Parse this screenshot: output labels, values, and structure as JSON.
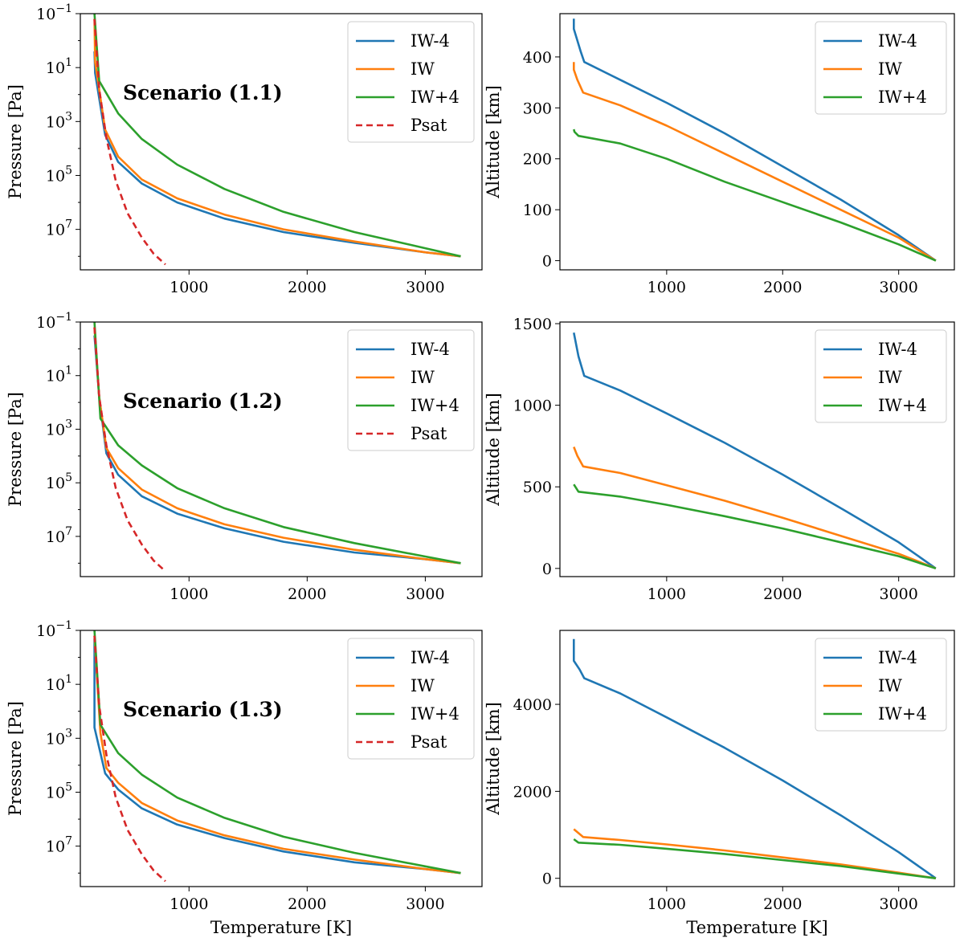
{
  "figure": {
    "colors": {
      "IW-4": "#1f77b4",
      "IW": "#ff7f0e",
      "IW+4": "#2ca02c",
      "Psat": "#d62728"
    }
  },
  "chart_data": [
    {
      "id": "p-1-1",
      "type": "line",
      "title": "",
      "annotation": "Scenario (1.1)",
      "xlabel": "",
      "ylabel": "Pressure [Pa]",
      "yscale": "log",
      "yinverted": true,
      "xlim": [
        80,
        3480
      ],
      "ylim_exp": [
        -1,
        8.5
      ],
      "xticks": [
        1000,
        2000,
        3000
      ],
      "xtick_labels": [
        "1000",
        "2000",
        "3000"
      ],
      "yticks_exp": [
        -1,
        1,
        3,
        5,
        7
      ],
      "ytick_labels": [
        "-1",
        "1",
        "3",
        "5",
        "7"
      ],
      "legend": {
        "position": "top-right",
        "entries": [
          "IW-4",
          "IW",
          "IW+4",
          "Psat"
        ]
      },
      "series": [
        {
          "name": "IW-4",
          "style": "solid",
          "x": [
            200,
            205,
            290,
            400,
            600,
            900,
            1300,
            1800,
            2400,
            3000,
            3300
          ],
          "y_exp": [
            0.4,
            1.2,
            3.5,
            4.5,
            5.3,
            6.0,
            6.6,
            7.1,
            7.5,
            7.85,
            8.0
          ]
        },
        {
          "name": "IW",
          "style": "solid",
          "x": [
            200,
            205,
            290,
            400,
            600,
            900,
            1300,
            1800,
            2400,
            3000,
            3300
          ],
          "y_exp": [
            -0.8,
            0.8,
            3.3,
            4.3,
            5.15,
            5.85,
            6.45,
            7.0,
            7.45,
            7.85,
            8.0
          ]
        },
        {
          "name": "IW+4",
          "style": "solid",
          "x": [
            200,
            240,
            400,
            600,
            900,
            1300,
            1800,
            2400,
            3000,
            3300
          ],
          "y_exp": [
            -1.0,
            1.5,
            2.7,
            3.65,
            4.6,
            5.5,
            6.35,
            7.1,
            7.7,
            8.0
          ]
        },
        {
          "name": "Psat",
          "style": "dashed",
          "x": [
            200,
            240,
            300,
            380,
            480,
            600,
            700,
            800
          ],
          "y_exp": [
            -0.8,
            1.8,
            3.6,
            5.2,
            6.4,
            7.3,
            7.9,
            8.3
          ]
        }
      ]
    },
    {
      "id": "a-1-1",
      "type": "line",
      "title": "",
      "xlabel": "",
      "ylabel": "Altitude [km]",
      "xlim": [
        80,
        3480
      ],
      "ylim": [
        -18,
        485
      ],
      "xticks": [
        1000,
        2000,
        3000
      ],
      "xtick_labels": [
        "1000",
        "2000",
        "3000"
      ],
      "yticks": [
        0,
        100,
        200,
        300,
        400
      ],
      "ytick_labels": [
        "0",
        "100",
        "200",
        "300",
        "400"
      ],
      "legend": {
        "position": "top-right",
        "entries": [
          "IW-4",
          "IW",
          "IW+4"
        ]
      },
      "series": [
        {
          "name": "IW-4",
          "style": "solid",
          "x": [
            200,
            200,
            220,
            260,
            290,
            600,
            1000,
            1500,
            2000,
            2500,
            3000,
            3320
          ],
          "y": [
            475,
            455,
            440,
            410,
            390,
            355,
            310,
            250,
            185,
            120,
            50,
            0
          ]
        },
        {
          "name": "IW",
          "style": "solid",
          "x": [
            200,
            200,
            230,
            280,
            600,
            1000,
            1500,
            2000,
            2500,
            3000,
            3320
          ],
          "y": [
            390,
            375,
            355,
            330,
            305,
            265,
            210,
            155,
            100,
            45,
            0
          ]
        },
        {
          "name": "IW+4",
          "style": "solid",
          "x": [
            200,
            205,
            240,
            600,
            1000,
            1500,
            2000,
            2500,
            3000,
            3320
          ],
          "y": [
            258,
            253,
            245,
            230,
            200,
            155,
            115,
            75,
            32,
            0
          ]
        }
      ]
    },
    {
      "id": "p-1-2",
      "type": "line",
      "title": "",
      "annotation": "Scenario (1.2)",
      "xlabel": "",
      "ylabel": "Pressure [Pa]",
      "yscale": "log",
      "yinverted": true,
      "xlim": [
        80,
        3480
      ],
      "ylim_exp": [
        -1,
        8.5
      ],
      "xticks": [
        1000,
        2000,
        3000
      ],
      "xtick_labels": [
        "1000",
        "2000",
        "3000"
      ],
      "yticks_exp": [
        -1,
        1,
        3,
        5,
        7
      ],
      "ytick_labels": [
        "-1",
        "1",
        "3",
        "5",
        "7"
      ],
      "legend": {
        "position": "top-right",
        "entries": [
          "IW-4",
          "IW",
          "IW+4",
          "Psat"
        ]
      },
      "series": [
        {
          "name": "IW-4",
          "style": "solid",
          "x": [
            200,
            240,
            300,
            400,
            600,
            900,
            1300,
            1800,
            2400,
            3000,
            3300
          ],
          "y_exp": [
            -0.5,
            1.8,
            3.9,
            4.7,
            5.5,
            6.15,
            6.7,
            7.2,
            7.6,
            7.85,
            8.0
          ]
        },
        {
          "name": "IW",
          "style": "solid",
          "x": [
            200,
            240,
            300,
            400,
            600,
            900,
            1300,
            1800,
            2400,
            3000,
            3300
          ],
          "y_exp": [
            -0.8,
            1.8,
            3.7,
            4.45,
            5.25,
            5.95,
            6.55,
            7.05,
            7.5,
            7.85,
            8.0
          ]
        },
        {
          "name": "IW+4",
          "style": "solid",
          "x": [
            200,
            250,
            400,
            600,
            900,
            1300,
            1800,
            2400,
            3000,
            3300
          ],
          "y_exp": [
            -1.0,
            2.6,
            3.6,
            4.35,
            5.2,
            5.95,
            6.65,
            7.25,
            7.75,
            8.0
          ]
        },
        {
          "name": "Psat",
          "style": "dashed",
          "x": [
            200,
            240,
            300,
            380,
            480,
            600,
            700,
            800
          ],
          "y_exp": [
            -0.8,
            1.8,
            3.6,
            5.2,
            6.4,
            7.3,
            7.9,
            8.3
          ]
        }
      ]
    },
    {
      "id": "a-1-2",
      "type": "line",
      "title": "",
      "xlabel": "",
      "ylabel": "Altitude [km]",
      "xlim": [
        80,
        3480
      ],
      "ylim": [
        -50,
        1510
      ],
      "xticks": [
        1000,
        2000,
        3000
      ],
      "xtick_labels": [
        "1000",
        "2000",
        "3000"
      ],
      "yticks": [
        0,
        500,
        1000,
        1500
      ],
      "ytick_labels": [
        "0",
        "500",
        "1000",
        "1500"
      ],
      "legend": {
        "position": "top-right",
        "entries": [
          "IW-4",
          "IW",
          "IW+4"
        ]
      },
      "series": [
        {
          "name": "IW-4",
          "style": "solid",
          "x": [
            200,
            240,
            290,
            600,
            1000,
            1500,
            2000,
            2500,
            3000,
            3320
          ],
          "y": [
            1445,
            1300,
            1180,
            1090,
            950,
            770,
            575,
            370,
            160,
            0
          ]
        },
        {
          "name": "IW",
          "style": "solid",
          "x": [
            200,
            230,
            280,
            600,
            1000,
            1500,
            2000,
            2500,
            3000,
            3320
          ],
          "y": [
            745,
            690,
            625,
            585,
            510,
            415,
            310,
            200,
            90,
            0
          ]
        },
        {
          "name": "IW+4",
          "style": "solid",
          "x": [
            200,
            240,
            600,
            1000,
            1500,
            2000,
            2500,
            3000,
            3320
          ],
          "y": [
            515,
            470,
            440,
            390,
            320,
            245,
            160,
            75,
            0
          ]
        }
      ]
    },
    {
      "id": "p-1-3",
      "type": "line",
      "title": "",
      "annotation": "Scenario (1.3)",
      "xlabel": "Temperature [K]",
      "ylabel": "Pressure [Pa]",
      "yscale": "log",
      "yinverted": true,
      "xlim": [
        80,
        3480
      ],
      "ylim_exp": [
        -1,
        8.5
      ],
      "xticks": [
        1000,
        2000,
        3000
      ],
      "xtick_labels": [
        "1000",
        "2000",
        "3000"
      ],
      "yticks_exp": [
        -1,
        1,
        3,
        5,
        7
      ],
      "ytick_labels": [
        "-1",
        "1",
        "3",
        "5",
        "7"
      ],
      "legend": {
        "position": "top-right",
        "entries": [
          "IW-4",
          "IW",
          "IW+4",
          "Psat"
        ]
      },
      "series": [
        {
          "name": "IW-4",
          "style": "solid",
          "x": [
            200,
            200,
            200,
            290,
            400,
            600,
            900,
            1300,
            1800,
            2400,
            3000,
            3300
          ],
          "y_exp": [
            -0.7,
            0.3,
            2.6,
            4.3,
            4.9,
            5.6,
            6.2,
            6.7,
            7.2,
            7.6,
            7.85,
            8.0
          ]
        },
        {
          "name": "IW",
          "style": "solid",
          "x": [
            200,
            250,
            300,
            400,
            600,
            900,
            1300,
            1800,
            2400,
            3000,
            3300
          ],
          "y_exp": [
            -0.8,
            2.8,
            4.1,
            4.65,
            5.4,
            6.05,
            6.6,
            7.1,
            7.5,
            7.85,
            8.0
          ]
        },
        {
          "name": "IW+4",
          "style": "solid",
          "x": [
            200,
            250,
            400,
            600,
            900,
            1300,
            1800,
            2400,
            3000,
            3300
          ],
          "y_exp": [
            -1.0,
            2.5,
            3.55,
            4.35,
            5.2,
            5.95,
            6.65,
            7.25,
            7.75,
            8.0
          ]
        },
        {
          "name": "Psat",
          "style": "dashed",
          "x": [
            200,
            240,
            300,
            380,
            480,
            600,
            700,
            800
          ],
          "y_exp": [
            -0.8,
            1.8,
            3.6,
            5.2,
            6.4,
            7.3,
            7.9,
            8.3
          ]
        }
      ]
    },
    {
      "id": "a-1-3",
      "type": "line",
      "title": "",
      "xlabel": "Temperature [K]",
      "ylabel": "Altitude [km]",
      "xlim": [
        80,
        3480
      ],
      "ylim": [
        -190,
        5700
      ],
      "xticks": [
        1000,
        2000,
        3000
      ],
      "xtick_labels": [
        "1000",
        "2000",
        "3000"
      ],
      "yticks": [
        0,
        2000,
        4000
      ],
      "ytick_labels": [
        "0",
        "2000",
        "4000"
      ],
      "legend": {
        "position": "top-right",
        "entries": [
          "IW-4",
          "IW",
          "IW+4"
        ]
      },
      "series": [
        {
          "name": "IW-4",
          "style": "solid",
          "x": [
            200,
            200,
            250,
            290,
            600,
            1000,
            1500,
            2000,
            2500,
            3000,
            3320
          ],
          "y": [
            5500,
            5000,
            4800,
            4600,
            4250,
            3700,
            3000,
            2250,
            1450,
            600,
            0
          ]
        },
        {
          "name": "IW",
          "style": "solid",
          "x": [
            200,
            280,
            600,
            1000,
            1500,
            2000,
            2500,
            3000,
            3320
          ],
          "y": [
            1130,
            950,
            880,
            780,
            640,
            480,
            320,
            130,
            0
          ]
        },
        {
          "name": "IW+4",
          "style": "solid",
          "x": [
            200,
            240,
            600,
            1000,
            1500,
            2000,
            2500,
            3000,
            3320
          ],
          "y": [
            900,
            820,
            770,
            680,
            560,
            420,
            280,
            110,
            0
          ]
        }
      ]
    }
  ]
}
